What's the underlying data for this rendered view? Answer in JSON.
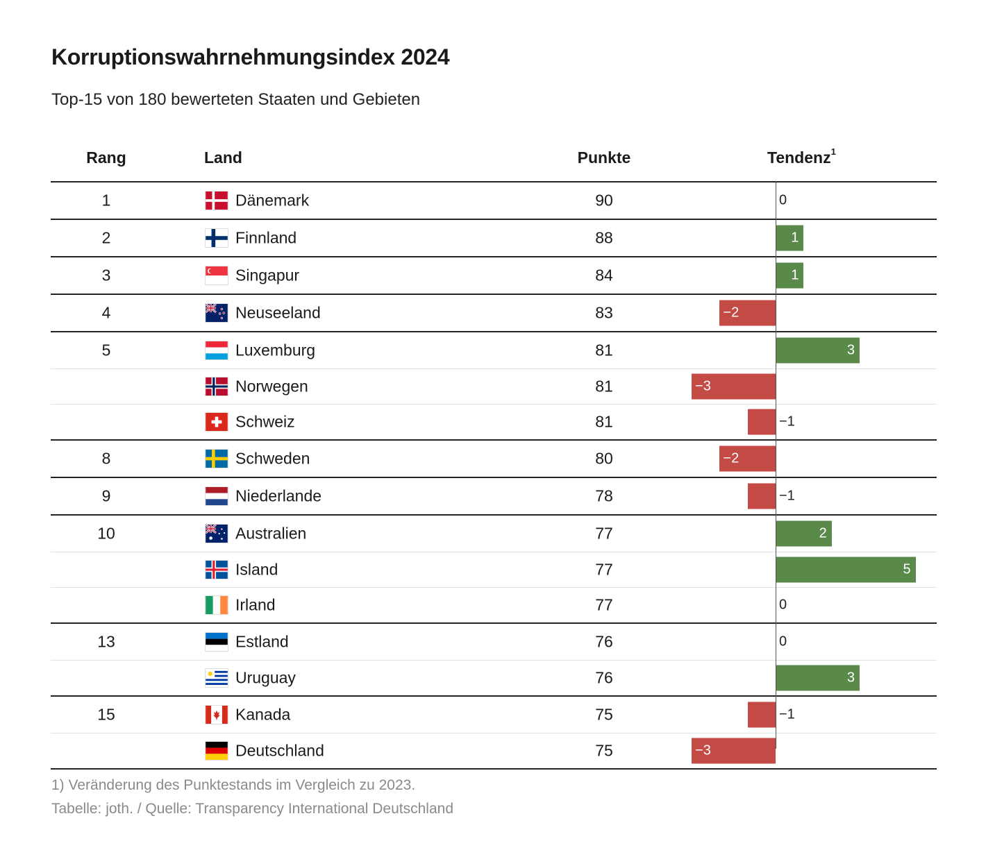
{
  "title": "Korruptionswahrnehmungsindex 2024",
  "subtitle": "Top-15 von 180 bewerteten Staaten und Gebieten",
  "headers": {
    "rank": "Rang",
    "land": "Land",
    "points": "Punkte",
    "tendency": "Tendenz",
    "tendency_sup": "1"
  },
  "footnote": "1) Veränderung des Punktestands im Vergleich zu 2023.",
  "source": "Tabelle: joth. / Quelle: Transparency International Deutschland",
  "colors": {
    "positive": "#5a8a4a",
    "negative": "#c44a45",
    "text": "#1a1a1a",
    "muted": "#8a8a8a"
  },
  "chart_data": {
    "type": "table",
    "columns": [
      "Rang",
      "Land",
      "Punkte",
      "Tendenz"
    ],
    "rows": [
      {
        "rank": "1",
        "country": "Dänemark",
        "flag": "flag-denmark",
        "points": 90,
        "change": 0,
        "change_label": "0"
      },
      {
        "rank": "2",
        "country": "Finnland",
        "flag": "flag-finland",
        "points": 88,
        "change": 1,
        "change_label": "1"
      },
      {
        "rank": "3",
        "country": "Singapur",
        "flag": "flag-singapore",
        "points": 84,
        "change": 1,
        "change_label": "1"
      },
      {
        "rank": "4",
        "country": "Neuseeland",
        "flag": "flag-new-zealand",
        "points": 83,
        "change": -2,
        "change_label": "−2"
      },
      {
        "rank": "5",
        "country": "Luxemburg",
        "flag": "flag-luxembourg",
        "points": 81,
        "change": 3,
        "change_label": "3"
      },
      {
        "rank": "",
        "country": "Norwegen",
        "flag": "flag-norway",
        "points": 81,
        "change": -3,
        "change_label": "−3"
      },
      {
        "rank": "",
        "country": "Schweiz",
        "flag": "flag-switzerland",
        "points": 81,
        "change": -1,
        "change_label": "−1"
      },
      {
        "rank": "8",
        "country": "Schweden",
        "flag": "flag-sweden",
        "points": 80,
        "change": -2,
        "change_label": "−2"
      },
      {
        "rank": "9",
        "country": "Niederlande",
        "flag": "flag-netherlands",
        "points": 78,
        "change": -1,
        "change_label": "−1"
      },
      {
        "rank": "10",
        "country": "Australien",
        "flag": "flag-australia",
        "points": 77,
        "change": 2,
        "change_label": "2"
      },
      {
        "rank": "",
        "country": "Island",
        "flag": "flag-iceland",
        "points": 77,
        "change": 5,
        "change_label": "5"
      },
      {
        "rank": "",
        "country": "Irland",
        "flag": "flag-ireland",
        "points": 77,
        "change": 0,
        "change_label": "0"
      },
      {
        "rank": "13",
        "country": "Estland",
        "flag": "flag-estonia",
        "points": 76,
        "change": 0,
        "change_label": "0"
      },
      {
        "rank": "",
        "country": "Uruguay",
        "flag": "flag-uruguay",
        "points": 76,
        "change": 3,
        "change_label": "3"
      },
      {
        "rank": "15",
        "country": "Kanada",
        "flag": "flag-canada",
        "points": 75,
        "change": -1,
        "change_label": "−1"
      },
      {
        "rank": "",
        "country": "Deutschland",
        "flag": "flag-germany",
        "points": 75,
        "change": -3,
        "change_label": "−3"
      }
    ]
  }
}
